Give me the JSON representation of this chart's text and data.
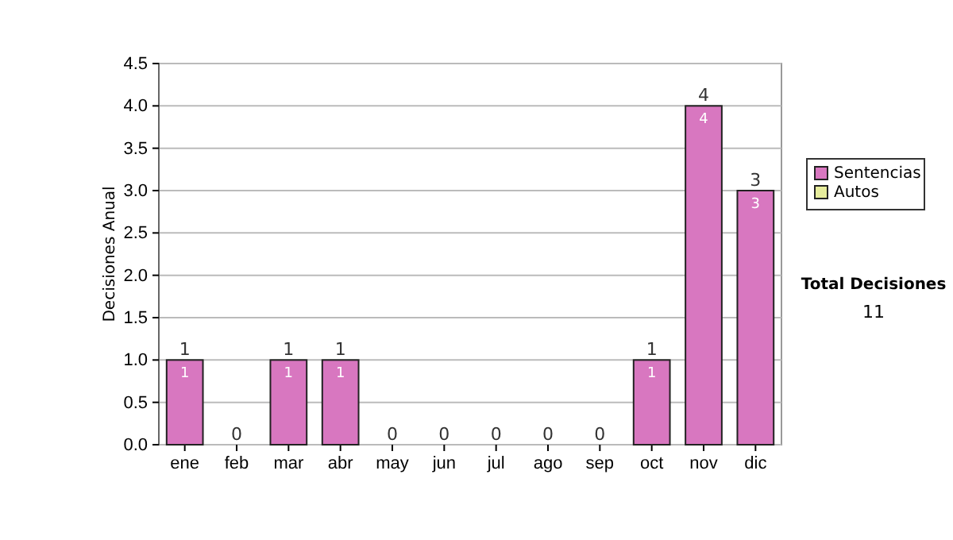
{
  "chart_data": {
    "type": "bar",
    "ylabel": "Decisiones Anual",
    "categories": [
      "ene",
      "feb",
      "mar",
      "abr",
      "may",
      "jun",
      "jul",
      "ago",
      "sep",
      "oct",
      "nov",
      "dic"
    ],
    "series": [
      {
        "name": "Sentencias",
        "color": "#d877c0",
        "values": [
          1,
          0,
          1,
          1,
          0,
          0,
          0,
          0,
          0,
          1,
          4,
          3
        ],
        "value_labels": [
          "1",
          null,
          "1",
          "1",
          null,
          null,
          null,
          null,
          null,
          "1",
          "4",
          "3"
        ]
      },
      {
        "name": "Autos",
        "color": "#e6ec9c",
        "values": [
          0,
          0,
          0,
          0,
          0,
          0,
          0,
          0,
          0,
          0,
          0,
          0
        ]
      }
    ],
    "stacked": true,
    "totals": [
      "1",
      "0",
      "1",
      "1",
      "0",
      "0",
      "0",
      "0",
      "0",
      "1",
      "4",
      "3"
    ],
    "ylim": [
      0,
      4.5
    ],
    "yticks": [
      {
        "value": 0,
        "label": "0.0"
      },
      0.5,
      {
        "value": 1,
        "label": "1.0"
      },
      1.5,
      {
        "value": 2,
        "label": "2.0"
      },
      2.5,
      {
        "value": 3,
        "label": "3.0"
      },
      3.5,
      {
        "value": 4,
        "label": "4.0"
      },
      4.5
    ],
    "grid": "y",
    "legend": "right",
    "annotations": [
      "Total Decisiones",
      "11"
    ]
  }
}
